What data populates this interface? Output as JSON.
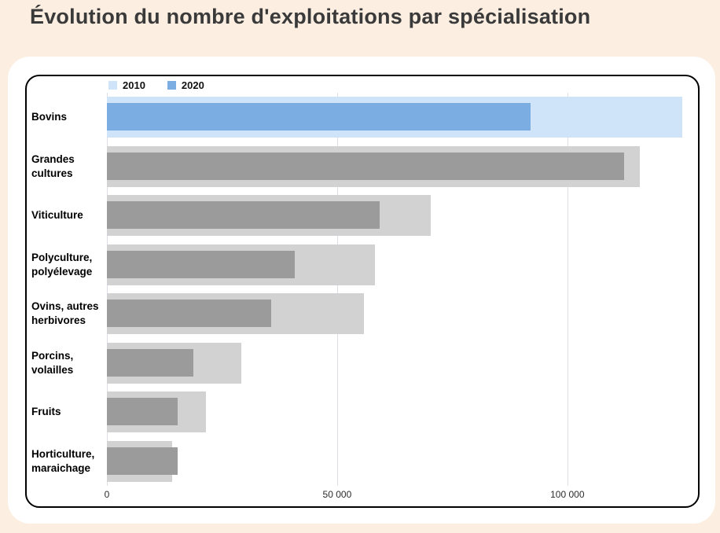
{
  "page": {
    "title": "Évolution du nombre d'exploitations par spécialisation",
    "background_color": "#fcefe2"
  },
  "legend": [
    {
      "label": "2010",
      "color": "#cfe4f9"
    },
    {
      "label": "2020",
      "color": "#7bade2"
    }
  ],
  "palette": {
    "highlight": {
      "s2010": "#cfe4f9",
      "s2020": "#7bade2"
    },
    "normal": {
      "s2010": "#d2d2d2",
      "s2020": "#9b9b9b"
    }
  },
  "axis": {
    "ticks": [
      {
        "value": 0,
        "label": "0"
      },
      {
        "value": 50000,
        "label": "50 000"
      },
      {
        "value": 100000,
        "label": "100 000"
      }
    ],
    "max": 127000
  },
  "chart_data": {
    "type": "bar",
    "orientation": "horizontal",
    "title": "Évolution du nombre d'exploitations par spécialisation",
    "categories": [
      "Bovins",
      "Grandes cultures",
      "Viticulture",
      "Polyculture, polyélevage",
      "Ovins, autres herbivores",
      "Porcins, volailles",
      "Fruits",
      "Horticulture, maraichage"
    ],
    "series": [
      {
        "name": "2010",
        "values": [
          125000,
          115700,
          70300,
          58200,
          55800,
          29200,
          21500,
          14200
        ]
      },
      {
        "name": "2020",
        "values": [
          92000,
          112300,
          59200,
          40800,
          35700,
          18800,
          15400,
          15400
        ]
      }
    ],
    "highlighted_category": "Bovins",
    "xlim": [
      0,
      127000
    ],
    "gridlines": [
      0,
      50000,
      100000
    ],
    "grid": true,
    "legend_position": "top-left",
    "xlabel": "",
    "ylabel": ""
  }
}
